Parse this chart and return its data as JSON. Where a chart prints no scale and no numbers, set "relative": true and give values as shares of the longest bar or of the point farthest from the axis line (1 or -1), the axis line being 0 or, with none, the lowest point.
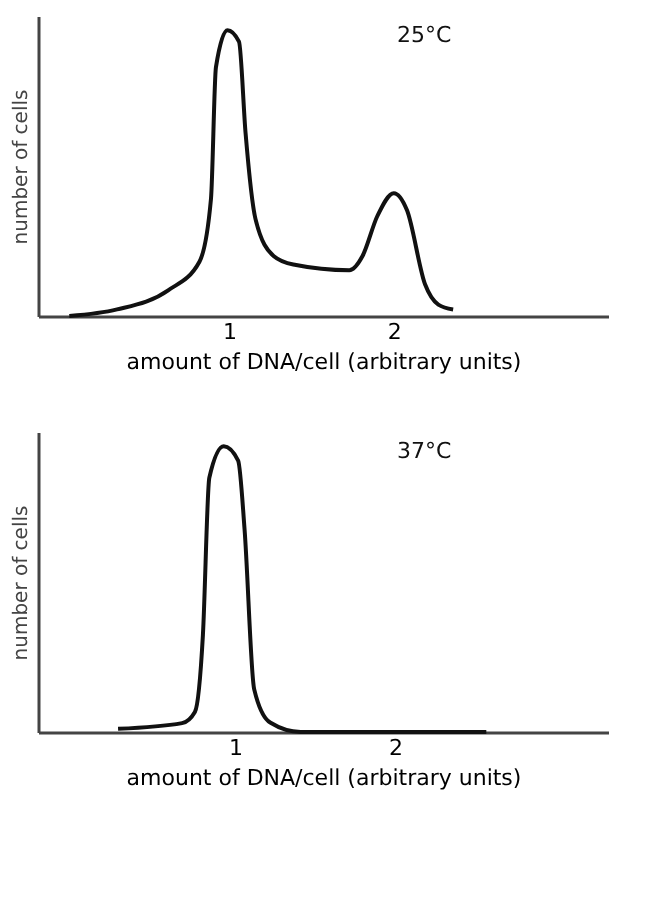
{
  "chart_data": [
    {
      "type": "line",
      "relative": true,
      "tick_labels": "x",
      "xlabel": "amount of DNA/cell (arbitrary units)",
      "ylabel": "number of cells",
      "annotations": [
        "25°C"
      ],
      "xlim": [
        -0.16,
        3.3
      ],
      "xticks": [
        1,
        2
      ],
      "series": [
        {
          "color": "#111111",
          "x": [
            0.03,
            0.32,
            0.63,
            0.82,
            0.89,
            0.92,
            0.99,
            1.06,
            1.1,
            1.16,
            1.27,
            1.39,
            1.73,
            1.81,
            1.9,
            2.0,
            2.08,
            2.19,
            2.27,
            2.36
          ],
          "values": [
            0,
            0.023,
            0.09,
            0.19,
            0.41,
            0.87,
            1.0,
            0.96,
            0.64,
            0.34,
            0.21,
            0.18,
            0.16,
            0.21,
            0.35,
            0.43,
            0.37,
            0.11,
            0.04,
            0.023
          ]
        }
      ]
    },
    {
      "type": "line",
      "relative": true,
      "tick_labels": "x",
      "xlabel": "amount of DNA/cell (arbitrary units)",
      "ylabel": "number of cells",
      "annotations": [
        "37°C"
      ],
      "xlim": [
        -0.23,
        3.33
      ],
      "xticks": [
        1,
        2
      ],
      "series": [
        {
          "color": "#111111",
          "x": [
            0.27,
            0.67,
            0.75,
            0.8,
            0.84,
            0.93,
            1.02,
            1.06,
            1.12,
            1.22,
            1.41,
            2.57
          ],
          "values": [
            0.011,
            0.031,
            0.07,
            0.34,
            0.89,
            1.0,
            0.95,
            0.71,
            0.15,
            0.033,
            0,
            0
          ]
        }
      ]
    }
  ]
}
